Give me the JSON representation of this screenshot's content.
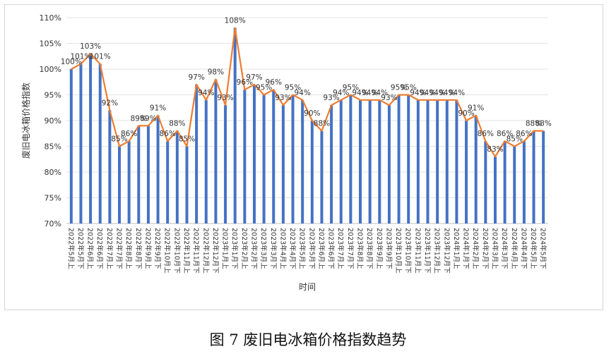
{
  "caption": "图 7  废旧电冰箱价格指数趋势",
  "chart_data": {
    "type": "bar+line",
    "title": "",
    "xlabel": "时间",
    "ylabel": "废旧电冰箱价格指数",
    "ylim": [
      70,
      110
    ],
    "yticks": [
      "70%",
      "75%",
      "80%",
      "85%",
      "90%",
      "95%",
      "100%",
      "105%",
      "110%"
    ],
    "grid": true,
    "categories": [
      "2022年5月上",
      "2022年5月下",
      "2022年6月上",
      "2022年6月下",
      "2022年7月上",
      "2022年7月下",
      "2022年8月上",
      "2022年8月下",
      "2022年9月上",
      "2022年9月下",
      "2022年10月上",
      "2022年10月下",
      "2022年11月上",
      "2022年11月下",
      "2022年12月上",
      "2022年12月下",
      "2023年1月上",
      "2023年1月下",
      "2023年2月上",
      "2023年2月下",
      "2023年3月上",
      "2023年3月下",
      "2023年4月上",
      "2023年4月下",
      "2023年5月上",
      "2023年5月下",
      "2023年6月上",
      "2023年6月下",
      "2023年7月上",
      "2023年7月下",
      "2023年8月上",
      "2023年8月下",
      "2023年9月上",
      "2023年9月下",
      "2023年10月上",
      "2023年10月下",
      "2023年11月上",
      "2023年11月下",
      "2023年12月上",
      "2023年12月下",
      "2024年1月上",
      "2024年1月下",
      "2024年2月上",
      "2024年2月下",
      "2024年3月上",
      "2024年3月下",
      "2024年4月上",
      "2024年4月下",
      "2024年5月上",
      "2024年5月下"
    ],
    "values": [
      100,
      101,
      103,
      101,
      92,
      85,
      86,
      89,
      89,
      91,
      86,
      88,
      85,
      97,
      94,
      98,
      93,
      108,
      96,
      97,
      95,
      96,
      93,
      95,
      94,
      90,
      88,
      93,
      94,
      95,
      94,
      94,
      94,
      93,
      95,
      95,
      94,
      94,
      94,
      94,
      94,
      90,
      91,
      86,
      83,
      86,
      85,
      86,
      88,
      88
    ],
    "labels": [
      "100%",
      "101%",
      "103%",
      "101%",
      "92%",
      "85%",
      "86%",
      "89%",
      "89%",
      "91%",
      "86%",
      "88%",
      "85%",
      "97%",
      "94%",
      "98%",
      "93%",
      "108%",
      "96%",
      "97%",
      "95%",
      "96%",
      "93%",
      "95%",
      "94%",
      "90%",
      "88%",
      "93%",
      "94%",
      "95%",
      "94%",
      "94%",
      "94%",
      "93%",
      "95%",
      "95%",
      "94%",
      "94%",
      "94%",
      "94%",
      "94%",
      "90%",
      "91%",
      "86%",
      "83%",
      "86%",
      "85%",
      "86%",
      "88%",
      "88%"
    ],
    "bar_color": "#4472C4",
    "line_color": "#ED7D31"
  }
}
